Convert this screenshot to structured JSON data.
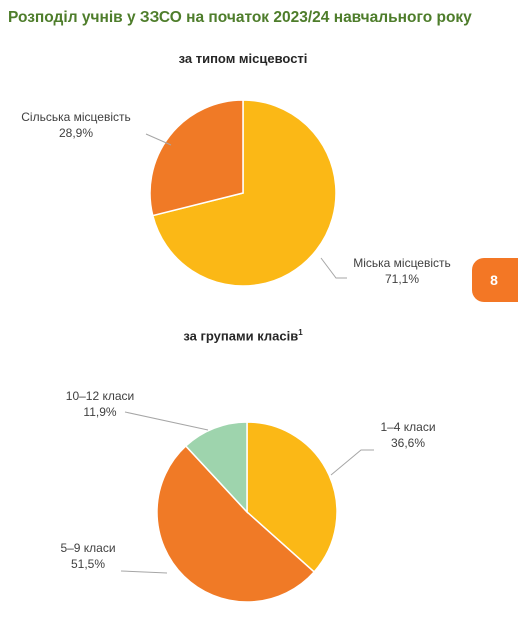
{
  "page": {
    "title": "Розподіл учнів у ЗЗСО на початок 2023/24 навчального року",
    "page_number": "8"
  },
  "colors": {
    "title": "#4e7d2b",
    "badge": "#f37725",
    "leader_line": "#a6a6a6"
  },
  "chart_data": [
    {
      "type": "pie",
      "title": "за типом місцевості",
      "title_sup": "",
      "start_angle_deg": 0,
      "slices": [
        {
          "label": "Міська місцевість",
          "value": 71.1,
          "value_text": "71,1%",
          "color": "#fbb816"
        },
        {
          "label": "Сільська місцевість",
          "value": 28.9,
          "value_text": "28,9%",
          "color": "#f07a26"
        }
      ]
    },
    {
      "type": "pie",
      "title": "за групами класів",
      "title_sup": "1",
      "start_angle_deg": 0,
      "slices": [
        {
          "label": "1–4 класи",
          "value": 36.6,
          "value_text": "36,6%",
          "color": "#fbb816"
        },
        {
          "label": "5–9 класи",
          "value": 51.5,
          "value_text": "51,5%",
          "color": "#f07a26"
        },
        {
          "label": "10–12 класи",
          "value": 11.9,
          "value_text": "11,9%",
          "color": "#9ed4ad"
        }
      ]
    }
  ]
}
